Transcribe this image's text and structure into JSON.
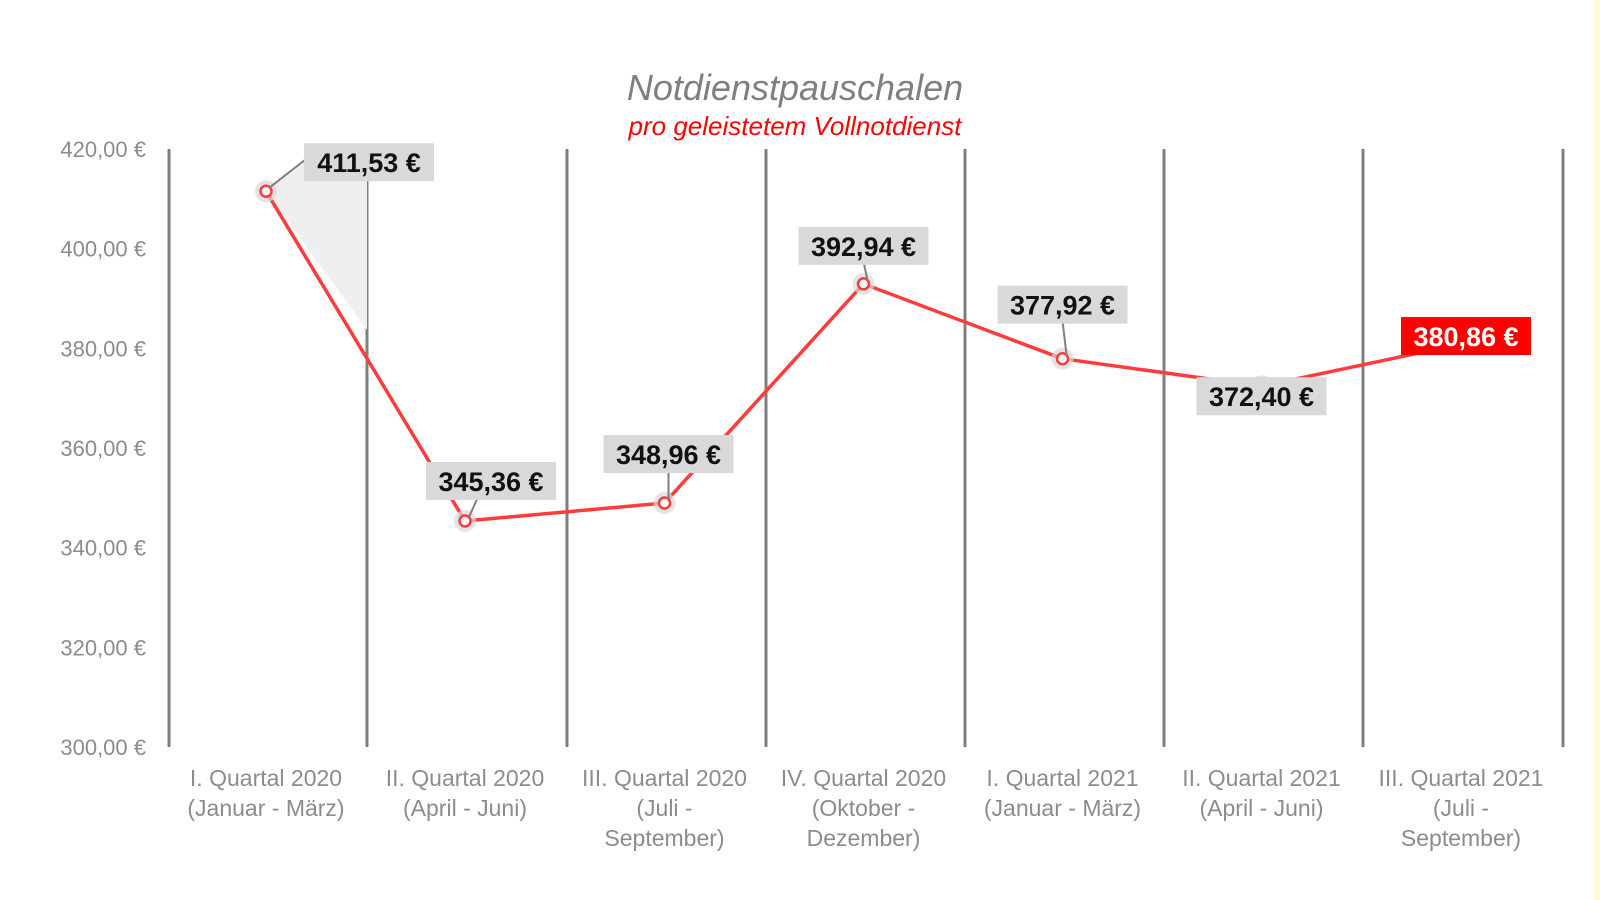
{
  "chart_data": {
    "type": "line",
    "title": "Notdienstpauschalen",
    "subtitle": "pro geleistetem Vollnotdienst",
    "categories": [
      [
        "I. Quartal 2020",
        "(Januar - März)"
      ],
      [
        "II. Quartal 2020",
        "(April - Juni)"
      ],
      [
        "III. Quartal 2020",
        "(Juli -",
        "September)"
      ],
      [
        "IV. Quartal 2020",
        "(Oktober -",
        "Dezember)"
      ],
      [
        "I. Quartal 2021",
        "(Januar - März)"
      ],
      [
        "II. Quartal 2021",
        "(April - Juni)"
      ],
      [
        "III. Quartal 2021",
        "(Juli -",
        "September)"
      ]
    ],
    "values": [
      411.53,
      345.36,
      348.96,
      392.94,
      377.92,
      372.4,
      380.86
    ],
    "data_labels": [
      "411,53 €",
      "345,36 €",
      "348,96 €",
      "392,94 €",
      "377,92 €",
      "372,40 €",
      "380,86 €"
    ],
    "highlight_index": 6,
    "ylim": [
      300,
      420
    ],
    "yticks": [
      300,
      320,
      340,
      360,
      380,
      400,
      420
    ],
    "ytick_labels": [
      "300,00 €",
      "320,00 €",
      "340,00 €",
      "360,00 €",
      "380,00 €",
      "400,00 €",
      "420,00 €"
    ],
    "xlabel": "",
    "ylabel": "",
    "grid": "vertical separators",
    "legend": "none",
    "colors": {
      "line": "#ff3b3b",
      "highlight_label_bg": "#ff0000",
      "label_bg": "#d9d9d9",
      "separator": "#7f7f7f"
    }
  }
}
